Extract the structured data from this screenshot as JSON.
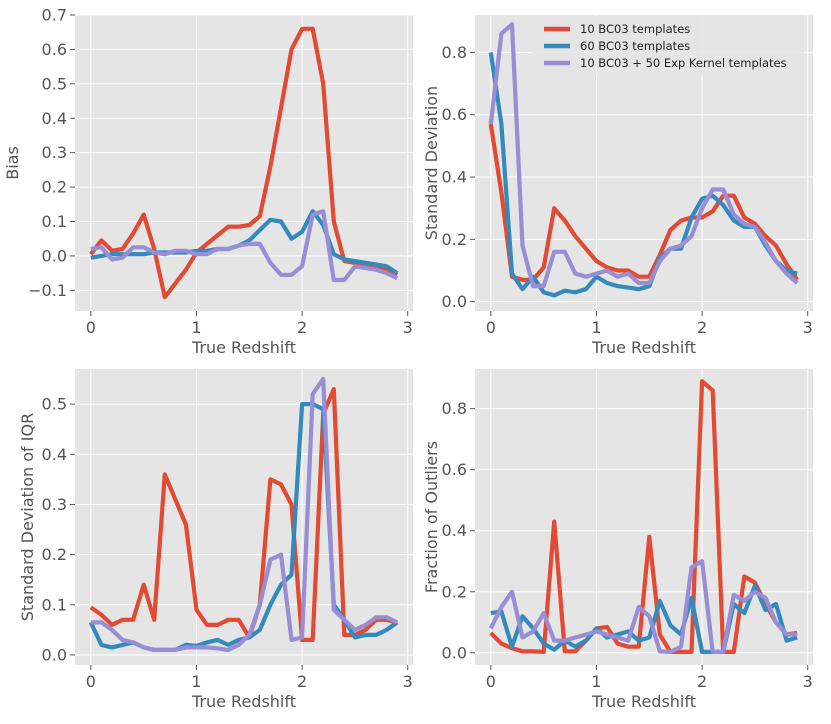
{
  "figure": {
    "background": "#ffffff",
    "panel_background": "#e5e5e5",
    "grid_color": "#ffffff"
  },
  "legend": {
    "placement": "top-right of panel 2",
    "entries": [
      {
        "label": "10 BC03 templates",
        "color": "#e24a33"
      },
      {
        "label": "60 BC03 templates",
        "color": "#348abd"
      },
      {
        "label": "10 BC03 + 50 Exp Kernel templates",
        "color": "#988ed5"
      }
    ]
  },
  "chart_data": [
    {
      "type": "line",
      "title": "",
      "xlabel": "True Redshift",
      "ylabel": "Bias",
      "xlim": [
        -0.15,
        3.05
      ],
      "ylim": [
        -0.16,
        0.7
      ],
      "xticks": [
        {
          "v": 0,
          "label": "0"
        },
        {
          "v": 1,
          "label": "1"
        },
        {
          "v": 2,
          "label": "2"
        },
        {
          "v": 3,
          "label": "3"
        }
      ],
      "yticks": [
        {
          "v": -0.1,
          "label": "−0.1"
        },
        {
          "v": 0,
          "label": "0.0"
        },
        {
          "v": 0.1,
          "label": "0.1"
        },
        {
          "v": 0.2,
          "label": "0.2"
        },
        {
          "v": 0.3,
          "label": "0.3"
        },
        {
          "v": 0.4,
          "label": "0.4"
        },
        {
          "v": 0.5,
          "label": "0.5"
        },
        {
          "v": 0.6,
          "label": "0.6"
        },
        {
          "v": 0.7,
          "label": "0.7"
        }
      ],
      "x": [
        0,
        0.1,
        0.2,
        0.3,
        0.4,
        0.5,
        0.6,
        0.7,
        0.8,
        0.9,
        1.0,
        1.1,
        1.2,
        1.3,
        1.4,
        1.5,
        1.6,
        1.7,
        1.8,
        1.9,
        2.0,
        2.1,
        2.2,
        2.3,
        2.4,
        2.5,
        2.6,
        2.7,
        2.8,
        2.9
      ],
      "series": [
        {
          "name": "10 BC03 templates",
          "color": "#e24a33",
          "values": [
            0.005,
            0.045,
            0.015,
            0.02,
            0.065,
            0.12,
            0.02,
            -0.12,
            -0.08,
            -0.04,
            0.01,
            0.035,
            0.06,
            0.085,
            0.085,
            0.09,
            0.115,
            0.26,
            0.43,
            0.6,
            0.66,
            0.66,
            0.5,
            0.1,
            -0.015,
            -0.02,
            -0.03,
            -0.035,
            -0.04,
            -0.055
          ]
        },
        {
          "name": "60 BC03 templates",
          "color": "#348abd",
          "values": [
            -0.005,
            0.0,
            0.005,
            0.005,
            0.005,
            0.005,
            0.01,
            0.01,
            0.01,
            0.01,
            0.015,
            0.015,
            0.02,
            0.02,
            0.03,
            0.045,
            0.075,
            0.105,
            0.1,
            0.05,
            0.07,
            0.13,
            0.09,
            0.005,
            -0.01,
            -0.015,
            -0.02,
            -0.025,
            -0.03,
            -0.05
          ]
        },
        {
          "name": "10 BC03 + 50 Exp Kernel templates",
          "color": "#988ed5",
          "values": [
            0.02,
            0.025,
            -0.01,
            -0.005,
            0.025,
            0.025,
            0.01,
            0.005,
            0.015,
            0.015,
            0.005,
            0.005,
            0.02,
            0.02,
            0.03,
            0.035,
            0.035,
            -0.02,
            -0.055,
            -0.055,
            -0.03,
            0.12,
            0.13,
            -0.07,
            -0.07,
            -0.03,
            -0.035,
            -0.04,
            -0.05,
            -0.065
          ]
        }
      ]
    },
    {
      "type": "line",
      "title": "",
      "xlabel": "True Redshift",
      "ylabel": "Standard Deviation",
      "xlim": [
        -0.15,
        3.05
      ],
      "ylim": [
        -0.03,
        0.92
      ],
      "xticks": [
        {
          "v": 0,
          "label": "0"
        },
        {
          "v": 1,
          "label": "1"
        },
        {
          "v": 2,
          "label": "2"
        },
        {
          "v": 3,
          "label": "3"
        }
      ],
      "yticks": [
        {
          "v": 0,
          "label": "0.0"
        },
        {
          "v": 0.2,
          "label": "0.2"
        },
        {
          "v": 0.4,
          "label": "0.4"
        },
        {
          "v": 0.6,
          "label": "0.6"
        },
        {
          "v": 0.8,
          "label": "0.8"
        }
      ],
      "x": [
        0,
        0.1,
        0.2,
        0.3,
        0.4,
        0.5,
        0.6,
        0.7,
        0.8,
        0.9,
        1.0,
        1.1,
        1.2,
        1.3,
        1.4,
        1.5,
        1.6,
        1.7,
        1.8,
        1.9,
        2.0,
        2.1,
        2.2,
        2.3,
        2.4,
        2.5,
        2.6,
        2.7,
        2.8,
        2.9
      ],
      "series": [
        {
          "name": "10 BC03 templates",
          "color": "#e24a33",
          "values": [
            0.57,
            0.35,
            0.08,
            0.07,
            0.07,
            0.11,
            0.3,
            0.26,
            0.21,
            0.17,
            0.13,
            0.11,
            0.1,
            0.1,
            0.08,
            0.08,
            0.15,
            0.23,
            0.26,
            0.27,
            0.27,
            0.29,
            0.34,
            0.34,
            0.27,
            0.25,
            0.21,
            0.18,
            0.12,
            0.07
          ]
        },
        {
          "name": "60 BC03 templates",
          "color": "#348abd",
          "values": [
            0.8,
            0.57,
            0.09,
            0.04,
            0.08,
            0.03,
            0.02,
            0.035,
            0.03,
            0.04,
            0.08,
            0.06,
            0.05,
            0.045,
            0.04,
            0.05,
            0.14,
            0.17,
            0.17,
            0.27,
            0.33,
            0.34,
            0.31,
            0.26,
            0.24,
            0.24,
            0.18,
            0.13,
            0.1,
            0.09
          ]
        },
        {
          "name": "10 BC03 + 50 Exp Kernel templates",
          "color": "#988ed5",
          "values": [
            0.57,
            0.86,
            0.89,
            0.18,
            0.05,
            0.05,
            0.16,
            0.16,
            0.09,
            0.08,
            0.09,
            0.1,
            0.08,
            0.09,
            0.06,
            0.06,
            0.13,
            0.17,
            0.18,
            0.21,
            0.3,
            0.36,
            0.36,
            0.28,
            0.25,
            0.24,
            0.19,
            0.13,
            0.09,
            0.06
          ]
        }
      ]
    },
    {
      "type": "line",
      "title": "",
      "xlabel": "True Redshift",
      "ylabel": "Standard Deviation of IQR",
      "xlim": [
        -0.15,
        3.05
      ],
      "ylim": [
        -0.02,
        0.57
      ],
      "xticks": [
        {
          "v": 0,
          "label": "0"
        },
        {
          "v": 1,
          "label": "1"
        },
        {
          "v": 2,
          "label": "2"
        },
        {
          "v": 3,
          "label": "3"
        }
      ],
      "yticks": [
        {
          "v": 0,
          "label": "0.0"
        },
        {
          "v": 0.1,
          "label": "0.1"
        },
        {
          "v": 0.2,
          "label": "0.2"
        },
        {
          "v": 0.3,
          "label": "0.3"
        },
        {
          "v": 0.4,
          "label": "0.4"
        },
        {
          "v": 0.5,
          "label": "0.5"
        }
      ],
      "x": [
        0,
        0.1,
        0.2,
        0.3,
        0.4,
        0.5,
        0.6,
        0.7,
        0.8,
        0.9,
        1.0,
        1.1,
        1.2,
        1.3,
        1.4,
        1.5,
        1.6,
        1.7,
        1.8,
        1.9,
        2.0,
        2.1,
        2.2,
        2.3,
        2.4,
        2.5,
        2.6,
        2.7,
        2.8,
        2.9
      ],
      "series": [
        {
          "name": "10 BC03 templates",
          "color": "#e24a33",
          "values": [
            0.095,
            0.08,
            0.06,
            0.07,
            0.07,
            0.14,
            0.07,
            0.36,
            0.31,
            0.26,
            0.09,
            0.06,
            0.06,
            0.07,
            0.07,
            0.035,
            0.1,
            0.35,
            0.34,
            0.3,
            0.03,
            0.03,
            0.48,
            0.53,
            0.04,
            0.04,
            0.05,
            0.07,
            0.07,
            0.065
          ]
        },
        {
          "name": "60 BC03 templates",
          "color": "#348abd",
          "values": [
            0.065,
            0.02,
            0.015,
            0.02,
            0.025,
            0.015,
            0.01,
            0.01,
            0.01,
            0.02,
            0.018,
            0.025,
            0.03,
            0.02,
            0.03,
            0.035,
            0.05,
            0.1,
            0.14,
            0.16,
            0.5,
            0.5,
            0.49,
            0.1,
            0.07,
            0.035,
            0.04,
            0.04,
            0.05,
            0.065
          ]
        },
        {
          "name": "10 BC03 + 50 Exp Kernel templates",
          "color": "#988ed5",
          "values": [
            0.065,
            0.065,
            0.05,
            0.03,
            0.025,
            0.015,
            0.01,
            0.01,
            0.01,
            0.015,
            0.015,
            0.015,
            0.013,
            0.01,
            0.02,
            0.04,
            0.1,
            0.19,
            0.2,
            0.03,
            0.035,
            0.52,
            0.55,
            0.09,
            0.07,
            0.05,
            0.06,
            0.075,
            0.075,
            0.065
          ]
        }
      ]
    },
    {
      "type": "line",
      "title": "",
      "xlabel": "True Redshift",
      "ylabel": "Fraction of Outliers",
      "xlim": [
        -0.15,
        3.05
      ],
      "ylim": [
        -0.04,
        0.93
      ],
      "xticks": [
        {
          "v": 0,
          "label": "0"
        },
        {
          "v": 1,
          "label": "1"
        },
        {
          "v": 2,
          "label": "2"
        },
        {
          "v": 3,
          "label": "3"
        }
      ],
      "yticks": [
        {
          "v": 0,
          "label": "0.0"
        },
        {
          "v": 0.2,
          "label": "0.2"
        },
        {
          "v": 0.4,
          "label": "0.4"
        },
        {
          "v": 0.6,
          "label": "0.6"
        },
        {
          "v": 0.8,
          "label": "0.8"
        }
      ],
      "x": [
        0,
        0.1,
        0.2,
        0.3,
        0.4,
        0.5,
        0.6,
        0.7,
        0.8,
        0.9,
        1.0,
        1.1,
        1.2,
        1.3,
        1.4,
        1.5,
        1.6,
        1.7,
        1.8,
        1.9,
        2.0,
        2.1,
        2.2,
        2.3,
        2.4,
        2.5,
        2.6,
        2.7,
        2.8,
        2.9
      ],
      "series": [
        {
          "name": "10 BC03 templates",
          "color": "#e24a33",
          "values": [
            0.065,
            0.03,
            0.015,
            0.005,
            0.005,
            0.003,
            0.43,
            0.005,
            0.005,
            0.04,
            0.08,
            0.085,
            0.03,
            0.02,
            0.02,
            0.38,
            0.06,
            0.003,
            0.003,
            0.003,
            0.89,
            0.86,
            0.003,
            0.003,
            0.25,
            0.23,
            0.16,
            0.1,
            0.06,
            0.065
          ]
        },
        {
          "name": "60 BC03 templates",
          "color": "#348abd",
          "values": [
            0.13,
            0.135,
            0.02,
            0.12,
            0.08,
            0.03,
            0.01,
            0.04,
            0.02,
            0.04,
            0.08,
            0.05,
            0.06,
            0.07,
            0.04,
            0.05,
            0.17,
            0.09,
            0.06,
            0.18,
            0.003,
            0.003,
            0.003,
            0.16,
            0.13,
            0.22,
            0.14,
            0.16,
            0.04,
            0.05
          ]
        },
        {
          "name": "10 BC03 + 50 Exp Kernel templates",
          "color": "#988ed5",
          "values": [
            0.08,
            0.15,
            0.2,
            0.05,
            0.07,
            0.13,
            0.04,
            0.04,
            0.05,
            0.06,
            0.07,
            0.06,
            0.05,
            0.04,
            0.15,
            0.12,
            0.005,
            0.003,
            0.02,
            0.28,
            0.3,
            0.003,
            0.003,
            0.19,
            0.17,
            0.2,
            0.18,
            0.1,
            0.06,
            0.06
          ]
        }
      ]
    }
  ]
}
